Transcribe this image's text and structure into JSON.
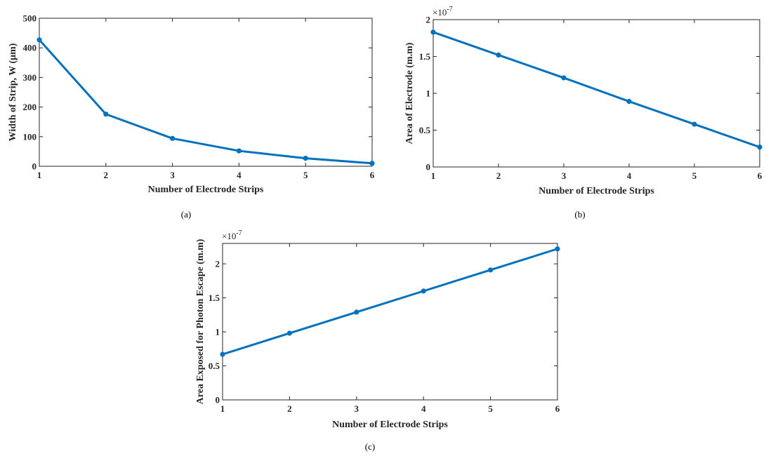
{
  "line_color": "#0072BD",
  "chart_data": [
    {
      "type": "line",
      "caption": "(a)",
      "xlabel": "Number of Electrode Strips",
      "ylabel": "Width of Strip, W (μm)",
      "x": [
        1,
        2,
        3,
        4,
        5,
        6
      ],
      "series": [
        {
          "values": [
            427,
            176,
            94,
            52,
            27,
            10
          ]
        }
      ],
      "xlim": [
        1,
        6
      ],
      "ylim": [
        0,
        500
      ],
      "xticks": [
        1,
        2,
        3,
        4,
        5,
        6
      ],
      "yticks": [
        0,
        100,
        200,
        300,
        400,
        500
      ],
      "ytick_labels": [
        "0",
        "100",
        "200",
        "300",
        "400",
        "500"
      ],
      "exponent_base": "",
      "exponent_power": "",
      "grid": false
    },
    {
      "type": "line",
      "caption": "(b)",
      "xlabel": "Number of Electrode Strips",
      "ylabel": "Area of Electrode (m.m)",
      "x": [
        1,
        2,
        3,
        4,
        5,
        6
      ],
      "series": [
        {
          "values": [
            1.83e-07,
            1.52e-07,
            1.21e-07,
            8.9e-08,
            5.8e-08,
            2.7e-08
          ]
        }
      ],
      "xlim": [
        1,
        6
      ],
      "ylim": [
        0,
        2e-07
      ],
      "xticks": [
        1,
        2,
        3,
        4,
        5,
        6
      ],
      "yticks": [
        0,
        5e-08,
        1e-07,
        1.5e-07,
        2e-07
      ],
      "ytick_labels": [
        "0",
        "0.5",
        "1",
        "1.5",
        "2"
      ],
      "exponent_base": "×10",
      "exponent_power": "-7",
      "grid": false
    },
    {
      "type": "line",
      "caption": "(c)",
      "xlabel": "Number of Electrode Strips",
      "ylabel": "Area Exposed for Photon Escape (m.m)",
      "x": [
        1,
        2,
        3,
        4,
        5,
        6
      ],
      "series": [
        {
          "values": [
            6.7e-08,
            9.8e-08,
            1.29e-07,
            1.6e-07,
            1.91e-07,
            2.22e-07
          ]
        }
      ],
      "xlim": [
        1,
        6
      ],
      "ylim": [
        0,
        2.3e-07
      ],
      "xticks": [
        1,
        2,
        3,
        4,
        5,
        6
      ],
      "yticks": [
        0,
        5e-08,
        1e-07,
        1.5e-07,
        2e-07
      ],
      "ytick_labels": [
        "0",
        "0.5",
        "1",
        "1.5",
        "2"
      ],
      "exponent_base": "×10",
      "exponent_power": "-7",
      "grid": false
    }
  ]
}
